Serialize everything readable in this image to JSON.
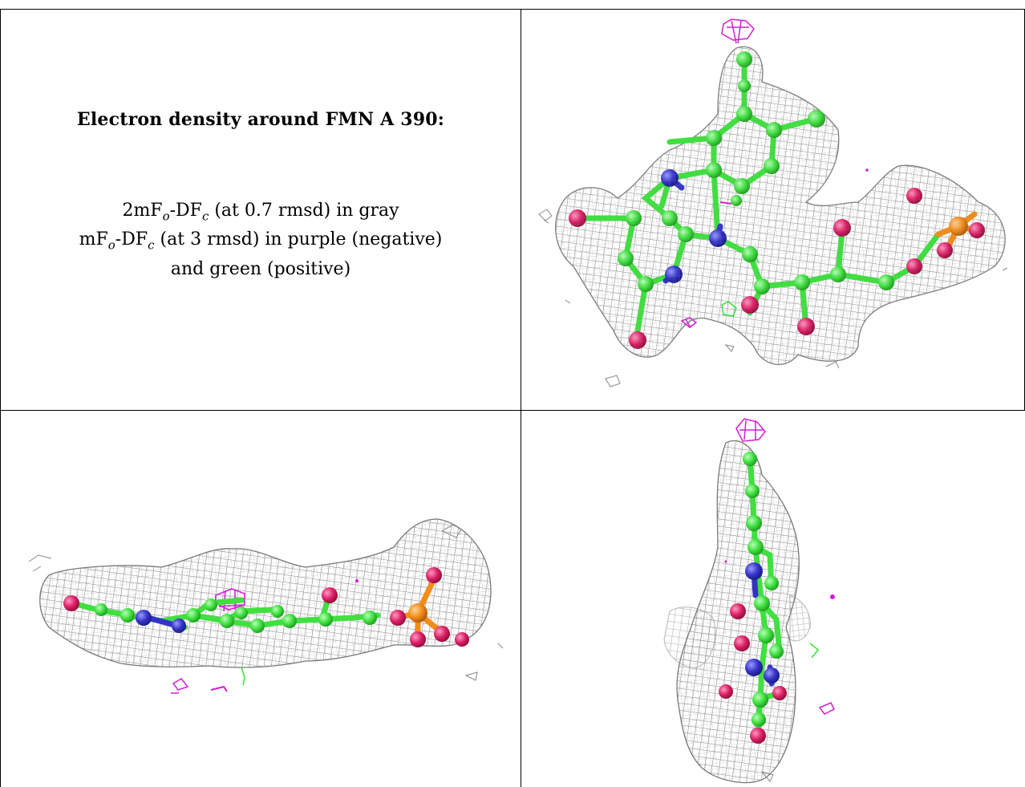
{
  "caption": {
    "title": "Electron density around FMN A 390:",
    "line1_pre": "2mF",
    "line1_sub1": "o",
    "line1_mid": "-DF",
    "line1_sub2": "c",
    "line1_post": " (at 0.7 rmsd) in gray",
    "line2_pre": "mF",
    "line2_sub1": "o",
    "line2_mid": "-DF",
    "line2_sub2": "c",
    "line2_post": " (at 3 rmsd) in purple (negative)",
    "line3": "and green (positive)"
  },
  "colors": {
    "density_mesh": "#8a8a8a",
    "negative_density": "#d21fd2",
    "positive_density": "#2ee82e",
    "carbon": "#4ee84e",
    "nitrogen": "#3b3bd6",
    "oxygen": "#e0266e",
    "phosphorus": "#f5941e"
  },
  "panels": [
    {
      "id": "top-right",
      "view": "front"
    },
    {
      "id": "bottom-left",
      "view": "side"
    },
    {
      "id": "bottom-right",
      "view": "edge"
    }
  ]
}
